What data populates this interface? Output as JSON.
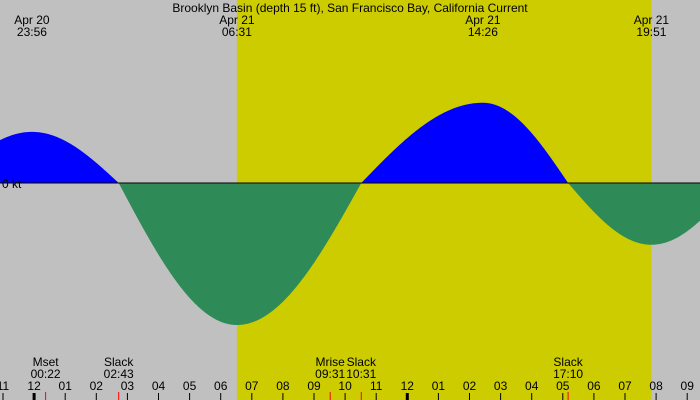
{
  "chart_data": {
    "type": "area",
    "title": "Brooklyn Basin (depth 15 ft), San Francisco Bay, California Current",
    "zero_label": "0 kt",
    "colors": {
      "background_night": "#c0c0c0",
      "background_day": "#cccc00",
      "flood": "#0000ff",
      "ebb": "#2e8b57",
      "baseline": "#000000",
      "moon_tick": "#ff0000"
    },
    "x_unit": "hour, Apr 20 (24 = Apr 21 00:00)",
    "x_range": [
      22.83,
      33.45
    ],
    "y_range": [
      -2.83,
      1.57
    ],
    "daylight": {
      "start": 30.52,
      "end": 43.85
    },
    "top_labels": [
      {
        "date": "Apr 20",
        "time": "23:56",
        "x": 23.93
      },
      {
        "date": "Apr 21",
        "time": "06:31",
        "x": 30.52
      },
      {
        "date": "Apr 21",
        "time": "14:26",
        "x": 38.43
      },
      {
        "date": "Apr 21",
        "time": "19:51",
        "x": 43.85
      }
    ],
    "bottom_events": [
      {
        "label": "Mset",
        "time": "00:22",
        "x": 24.37,
        "moon": true
      },
      {
        "label": "Slack",
        "time": "02:43",
        "x": 26.72,
        "moon": false
      },
      {
        "label": "Mrise",
        "time": "09:31",
        "x": 33.52,
        "moon": true
      },
      {
        "label": "Slack",
        "time": "10:31",
        "x": 34.52,
        "moon": false
      },
      {
        "label": "Slack",
        "time": "17:10",
        "x": 41.17,
        "moon": false
      }
    ],
    "hour_ticks": [
      {
        "label": "11",
        "x": 23
      },
      {
        "label": "12",
        "x": 24
      },
      {
        "label": "01",
        "x": 25
      },
      {
        "label": "02",
        "x": 26
      },
      {
        "label": "03",
        "x": 27
      },
      {
        "label": "04",
        "x": 28
      },
      {
        "label": "05",
        "x": 29
      },
      {
        "label": "06",
        "x": 30
      },
      {
        "label": "07",
        "x": 31
      },
      {
        "label": "08",
        "x": 32
      },
      {
        "label": "09",
        "x": 33
      },
      {
        "label": "10",
        "x": 34
      },
      {
        "label": "11",
        "x": 35
      },
      {
        "label": "12",
        "x": 36
      },
      {
        "label": "01",
        "x": 37
      },
      {
        "label": "02",
        "x": 38
      },
      {
        "label": "03",
        "x": 39
      },
      {
        "label": "04",
        "x": 40
      },
      {
        "label": "05",
        "x": 41
      },
      {
        "label": "06",
        "x": 42
      },
      {
        "label": "07",
        "x": 43
      },
      {
        "label": "08",
        "x": 44
      },
      {
        "label": "09",
        "x": 45
      }
    ],
    "extrema": [
      {
        "x": 23.93,
        "y": 0.72
      },
      {
        "x": 30.52,
        "y": -2.0
      },
      {
        "x": 38.43,
        "y": 1.13
      },
      {
        "x": 43.85,
        "y": -0.87
      }
    ],
    "crossings": [
      26.72,
      34.52,
      41.17
    ]
  }
}
